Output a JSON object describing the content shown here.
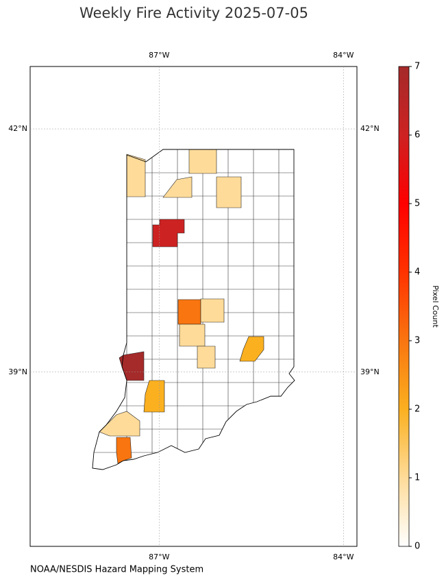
{
  "chart_data": {
    "type": "map",
    "title": "Weekly Fire Activity 2025-07-05",
    "source": "NOAA/NESDIS Hazard Mapping System",
    "colorbar_label": "Pixel Count",
    "xlim": [
      -89.1,
      -83.78
    ],
    "ylim": [
      36.85,
      42.77
    ],
    "xticks": [
      {
        "value": -87,
        "label": "87°W"
      },
      {
        "value": -84,
        "label": "84°W"
      }
    ],
    "yticks": [
      {
        "value": 39,
        "label": "39°N"
      },
      {
        "value": 42,
        "label": "42°N"
      }
    ],
    "grid": true,
    "clim": [
      0,
      7
    ],
    "cticks": [
      0,
      1,
      2,
      3,
      4,
      5,
      6,
      7
    ],
    "colormap": [
      "#ffffff",
      "#fedb99",
      "#fbb020",
      "#f97510",
      "#ff3300",
      "#ff0000",
      "#cd2222",
      "#a52a2a"
    ],
    "values": [
      1,
      1,
      1,
      1,
      6,
      3,
      1,
      1,
      1,
      2,
      7,
      2,
      1,
      3
    ]
  }
}
